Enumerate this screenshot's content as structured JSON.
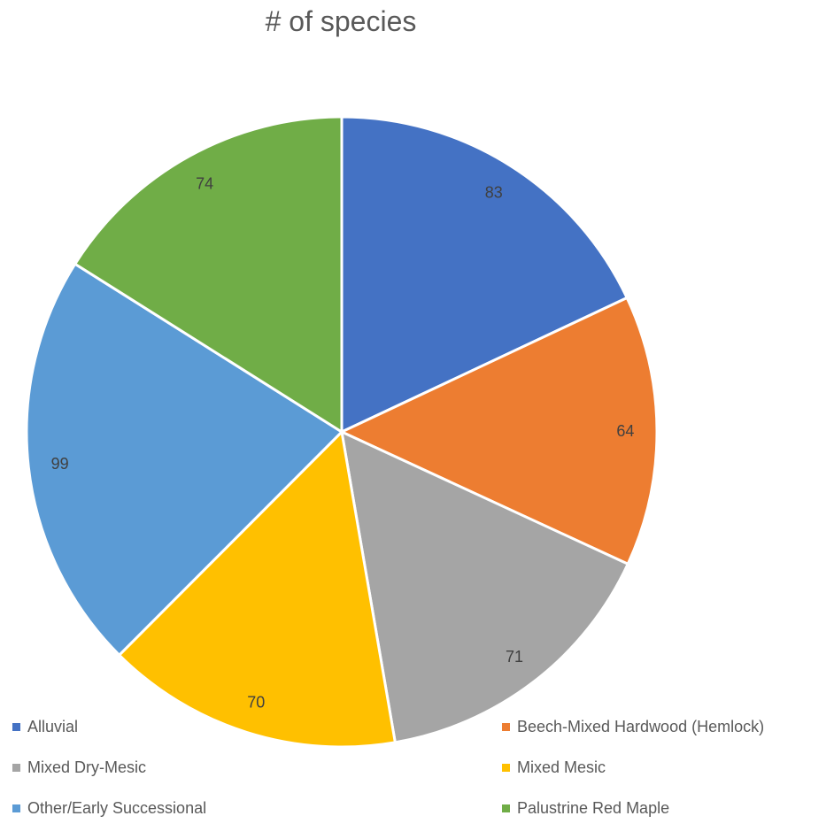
{
  "chart_data": {
    "type": "pie",
    "title": "# of species",
    "categories": [
      "Alluvial",
      "Beech-Mixed Hardwood (Hemlock)",
      "Mixed Dry-Mesic",
      "Mixed Mesic",
      "Other/Early Successional",
      "Palustrine Red Maple"
    ],
    "values": [
      83,
      64,
      71,
      70,
      99,
      74
    ],
    "colors": [
      "#4472C4",
      "#ED7D31",
      "#A5A5A5",
      "#FFC000",
      "#5B9BD5",
      "#70AD47"
    ],
    "data_labels": true,
    "legend_position": "bottom"
  }
}
